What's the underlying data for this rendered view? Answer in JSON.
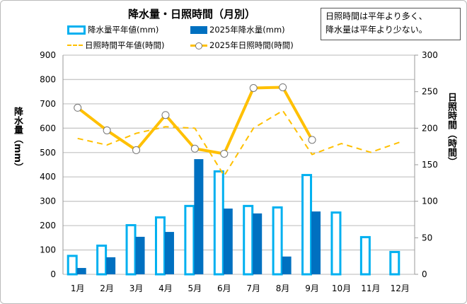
{
  "chart_data": {
    "type": "bar+line",
    "title": "降水量・日照時間（月別）",
    "annotation_lines": [
      "日照時間は平年より多く、",
      "降水量は平年より少ない。"
    ],
    "categories": [
      "1月",
      "2月",
      "3月",
      "4月",
      "5月",
      "6月",
      "7月",
      "8月",
      "9月",
      "10月",
      "11月",
      "12月"
    ],
    "ylabel_left": "降水量（mm）",
    "ylabel_right": "日照時間（時間）",
    "ylim_left": [
      0,
      900
    ],
    "ylim_right": [
      0,
      300
    ],
    "yticks_left": [
      0,
      100,
      200,
      300,
      400,
      500,
      600,
      700,
      800,
      900
    ],
    "yticks_right": [
      0,
      50,
      100,
      150,
      200,
      250,
      300
    ],
    "grid": true,
    "legend_position": "top",
    "series": [
      {
        "name": "降水量平年値(mm)",
        "kind": "bar-outline",
        "axis": "left",
        "color": "#00b0f0",
        "values": [
          80,
          122,
          206,
          238,
          285,
          427,
          285,
          279,
          412,
          258,
          157,
          96
        ]
      },
      {
        "name": "2025年降水量(mm)",
        "kind": "bar",
        "axis": "left",
        "color": "#0070c0",
        "values": [
          26,
          70,
          154,
          174,
          473,
          270,
          250,
          73,
          258,
          null,
          null,
          null
        ]
      },
      {
        "name": "日照時間平年値(時間)",
        "kind": "line-dashed",
        "axis": "right",
        "color": "#ffc000",
        "values": [
          186,
          177,
          193,
          202,
          200,
          135,
          200,
          224,
          164,
          179,
          167,
          181
        ]
      },
      {
        "name": "2025年日照時間(時間)",
        "kind": "line-markers",
        "axis": "right",
        "color": "#ffc000",
        "values": [
          228,
          197,
          170,
          218,
          172,
          165,
          255,
          256,
          184,
          null,
          null,
          null
        ]
      }
    ]
  }
}
